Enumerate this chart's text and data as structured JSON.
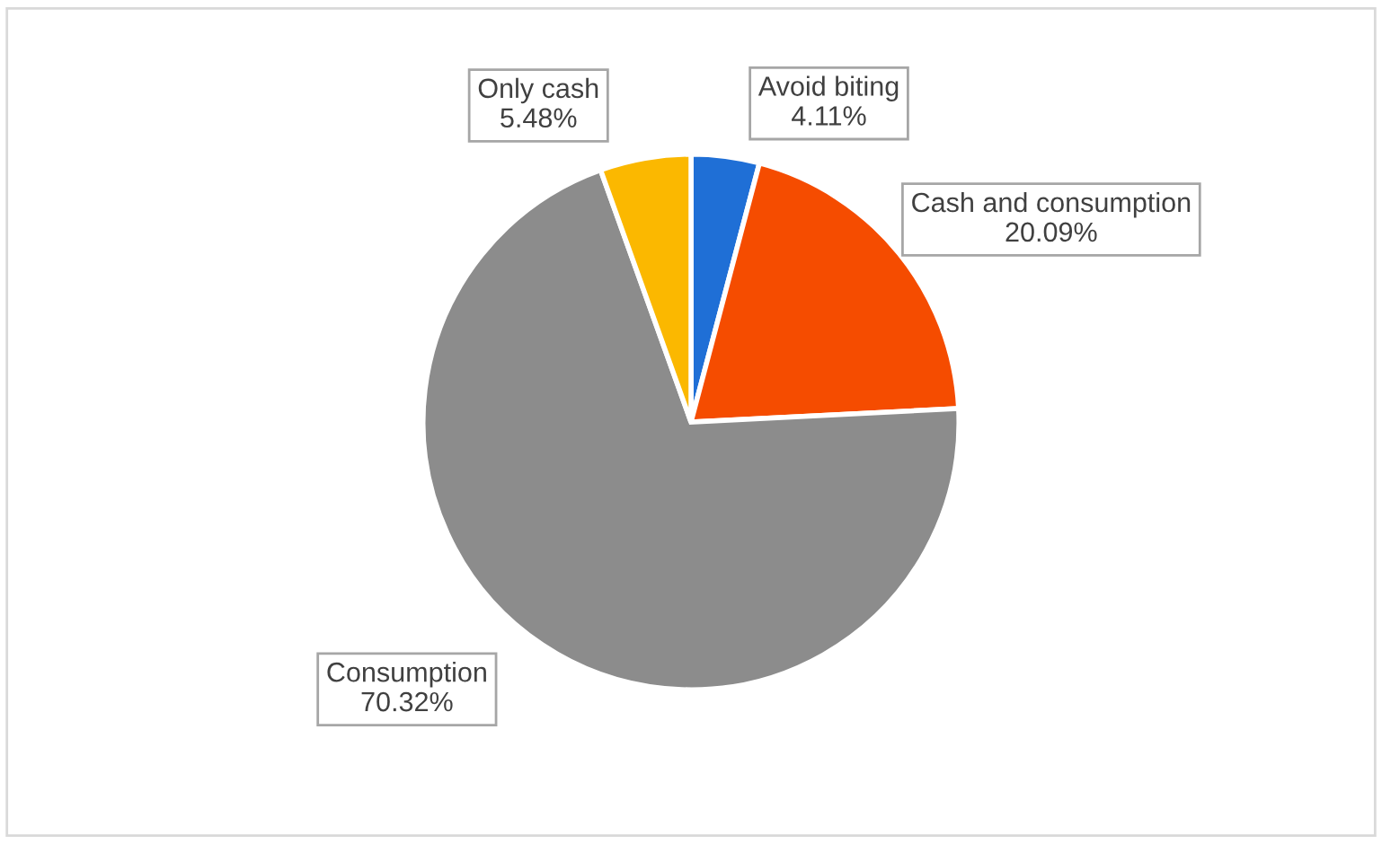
{
  "chart_data": {
    "type": "pie",
    "categories": [
      "Avoid biting",
      "Cash and consumption",
      "Consumption",
      "Only cash"
    ],
    "values": [
      4.11,
      20.09,
      70.32,
      5.48
    ],
    "value_labels": [
      "4.11%",
      "20.09%",
      "70.32%",
      "5.48%"
    ],
    "colors": [
      "#1f6fd6",
      "#f54c00",
      "#8c8c8c",
      "#fbb800"
    ],
    "legend": false
  }
}
